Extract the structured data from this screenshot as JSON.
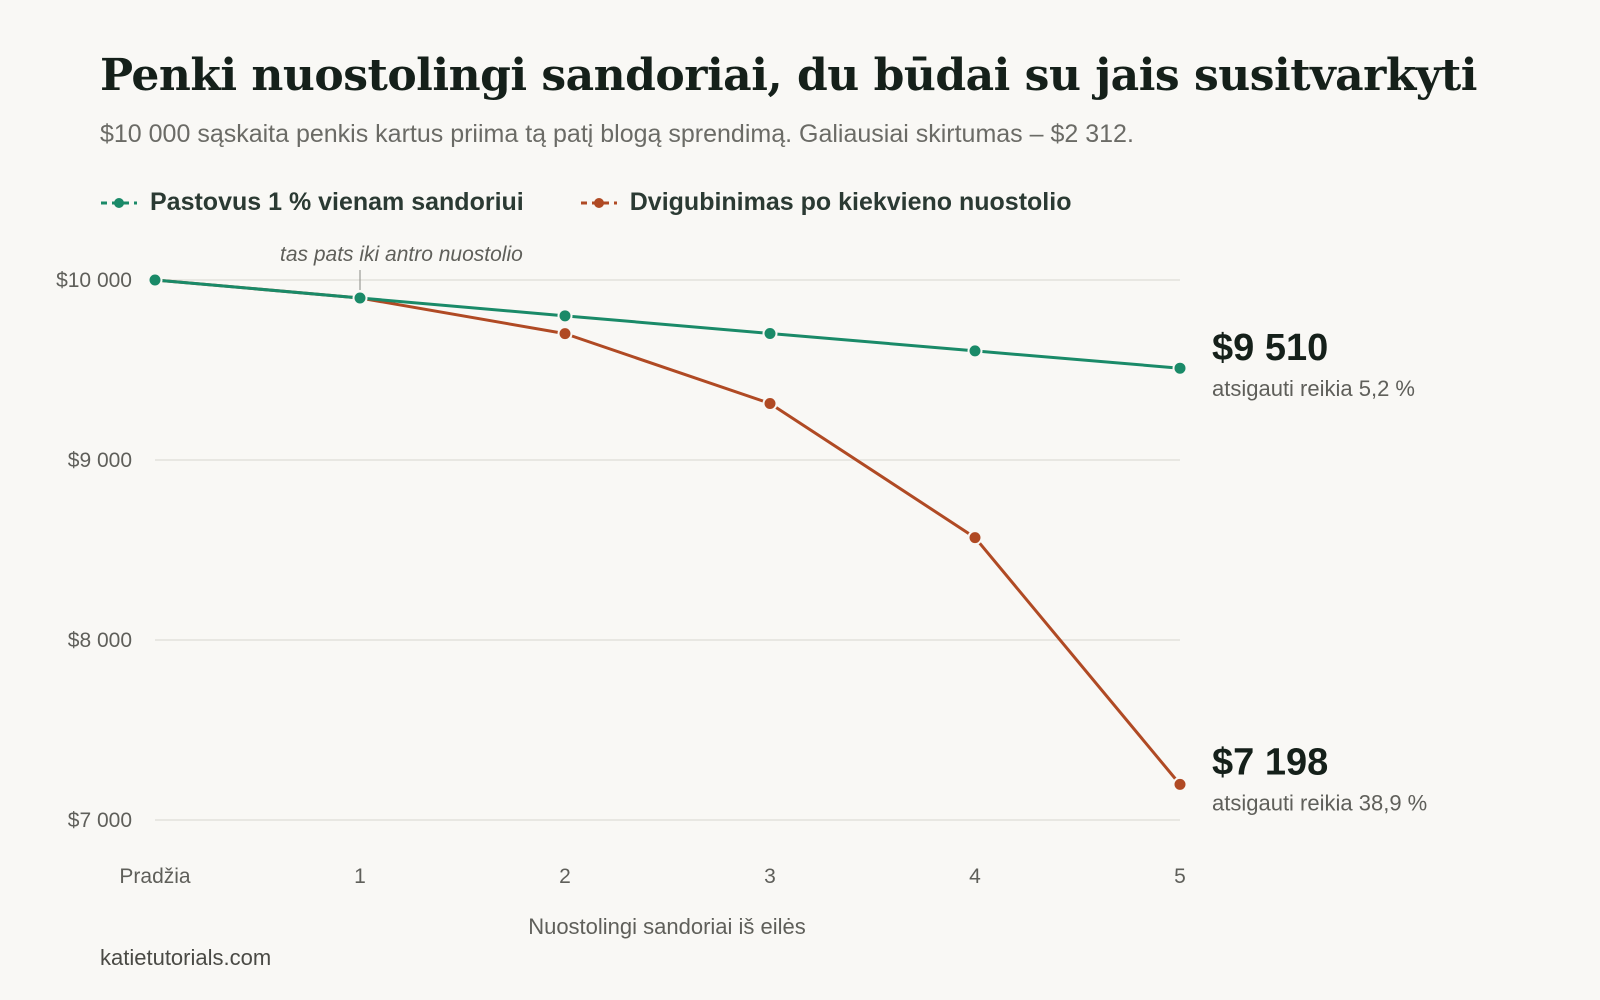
{
  "title": "Penki nuostolingi sandoriai, du būdai su jais susitvarkyti",
  "subtitle": "$10 000 sąskaita penkis kartus priima tą patį blogą sprendimą. Galiausiai skirtumas – $2 312.",
  "source": "katietutorials.com",
  "colors": {
    "steady": "#1a8a68",
    "doubling": "#b04a24",
    "grid": "#e3e1dc",
    "background": "#f9f8f5"
  },
  "chart_data": {
    "type": "line",
    "categories": [
      "Pradžia",
      "1",
      "2",
      "3",
      "4",
      "5"
    ],
    "xlabel": "Nuostolingi sandoriai iš eilės",
    "ylabel": "",
    "ylim": [
      7000,
      10000
    ],
    "yticks": [
      10000,
      9000,
      8000,
      7000
    ],
    "ytick_labels": [
      "$10 000",
      "$9 000",
      "$8 000",
      "$7 000"
    ],
    "grid": true,
    "legend_position": "top-left",
    "series": [
      {
        "key": "steady",
        "name": "Pastovus 1 % vienam sandoriui",
        "values": [
          10000,
          9900,
          9801,
          9703,
          9606,
          9510
        ],
        "end_label": "$9 510",
        "end_note": "atsigauti reikia 5,2 %"
      },
      {
        "key": "doubling",
        "name": "Dvigubinimas po kiekvieno nuostolio",
        "values": [
          10000,
          9900,
          9702,
          9314,
          8569,
          7198
        ],
        "end_label": "$7 198",
        "end_note": "atsigauti reikia 38,9 %"
      }
    ],
    "annotations": [
      {
        "text": "tas pats iki antro nuostolio",
        "category": "1"
      }
    ]
  }
}
